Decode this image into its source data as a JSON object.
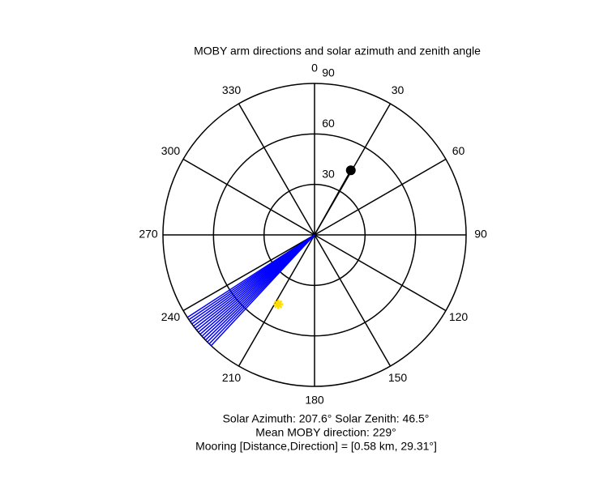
{
  "chart_data": {
    "type": "polar",
    "title": "MOBY arm directions and solar azimuth and zenith angle",
    "theta_zero": "top",
    "theta_direction": "clockwise",
    "theta_ticks": [
      0,
      30,
      60,
      90,
      120,
      150,
      180,
      210,
      240,
      270,
      300,
      330
    ],
    "rlim": [
      0,
      90
    ],
    "r_ticks": [
      30,
      60,
      90
    ],
    "series": [
      {
        "color": "#0000ff",
        "style": "line",
        "theta": [
          223,
          224,
          225,
          226,
          227,
          228,
          229,
          230,
          231,
          232,
          233,
          234,
          235,
          236,
          237
        ],
        "r": [
          90,
          90,
          90,
          90,
          90,
          90,
          90,
          90,
          90,
          90,
          90,
          90,
          90,
          90,
          90
        ]
      },
      {
        "color": "#000000",
        "style": "marker",
        "marker": "dot",
        "theta": [
          29.31
        ],
        "r": [
          44
        ]
      },
      {
        "color": "#ffdd00",
        "style": "marker",
        "marker": "star",
        "theta": [
          207.6
        ],
        "r": [
          46.5
        ]
      }
    ],
    "annotations": [
      "Solar Azimuth: 207.6°   Solar Zenith: 46.5°",
      "Mean MOBY direction: 229°",
      "Mooring [Distance,Direction] = [0.58 km, 29.31°]"
    ]
  }
}
